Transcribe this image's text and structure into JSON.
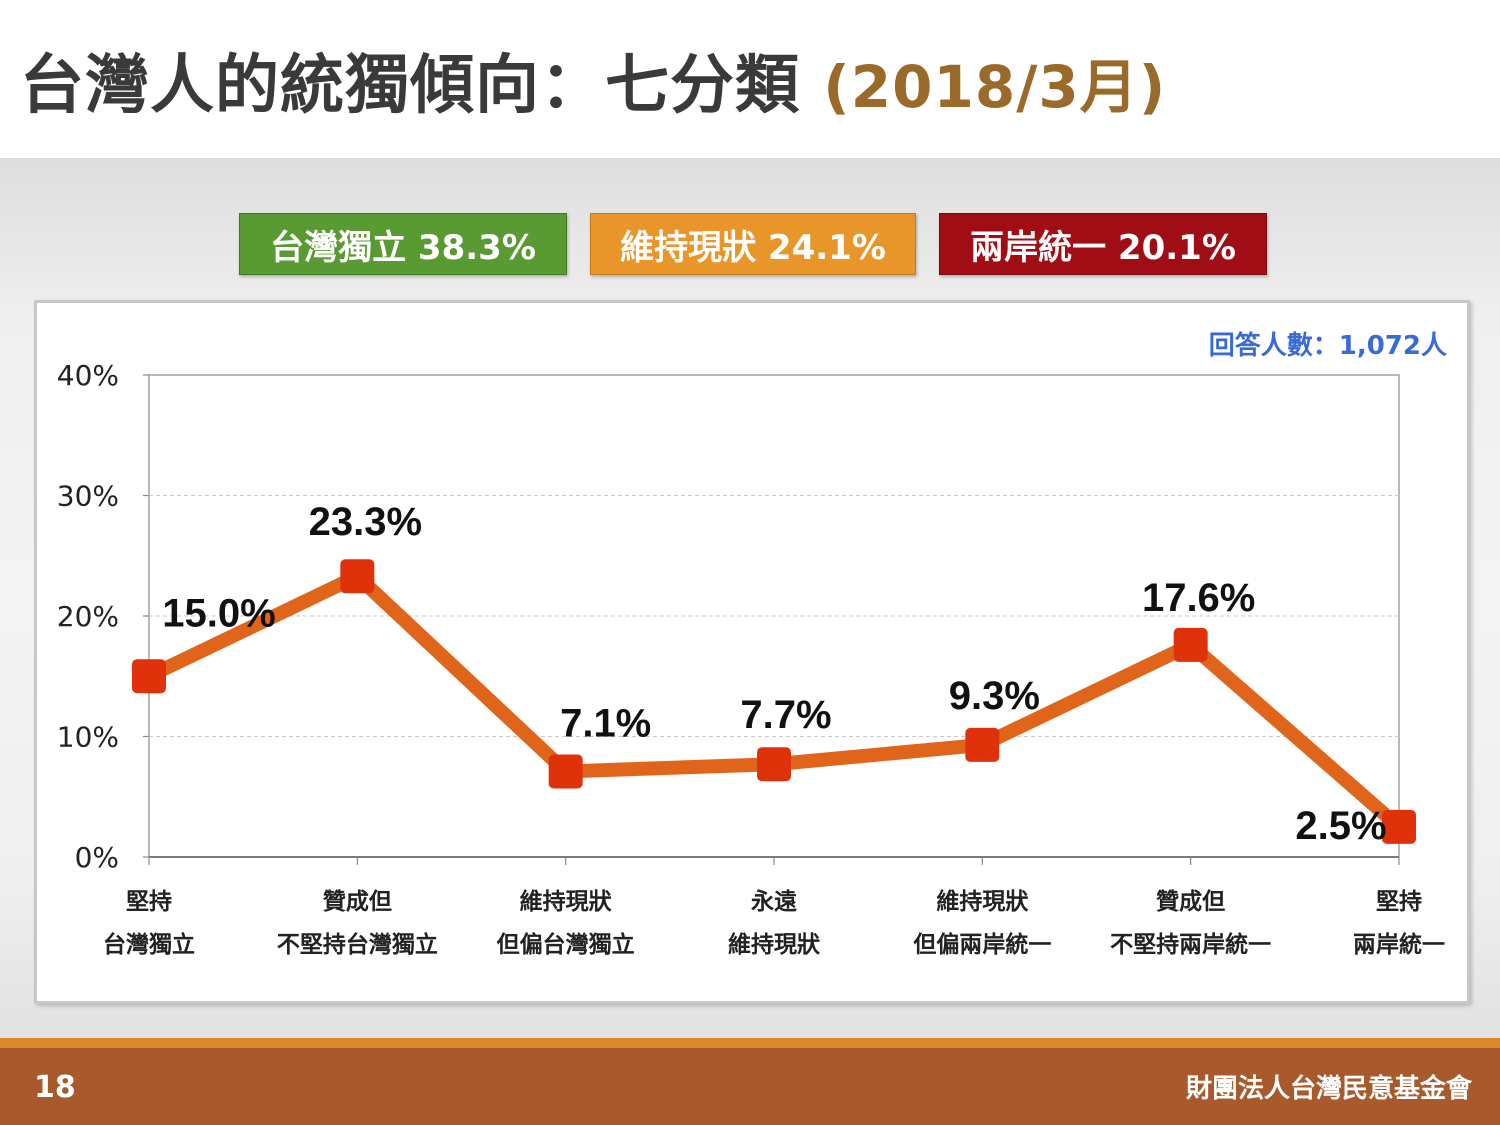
{
  "title": {
    "main": "台灣人的統獨傾向：七分類",
    "date": "(2018/3月)"
  },
  "badges": [
    {
      "label": "台灣獨立 38.3%",
      "color": "#5a9a32"
    },
    {
      "label": "維持現狀 24.1%",
      "color": "#e8962a"
    },
    {
      "label": "兩岸統一 20.1%",
      "color": "#a00d14"
    }
  ],
  "respondents": "回答人數：1,072人",
  "footer": {
    "page": "18",
    "org": "財團法人台灣民意基金會"
  },
  "chart_data": {
    "type": "line",
    "categories": [
      [
        "堅持",
        "台灣獨立"
      ],
      [
        "贊成但",
        "不堅持台灣獨立"
      ],
      [
        "維持現狀",
        "但偏台灣獨立"
      ],
      [
        "永遠",
        "維持現狀"
      ],
      [
        "維持現狀",
        "但偏兩岸統一"
      ],
      [
        "贊成但",
        "不堅持兩岸統一"
      ],
      [
        "堅持",
        "兩岸統一"
      ]
    ],
    "series": [
      {
        "values": [
          15.0,
          23.3,
          7.1,
          7.7,
          9.3,
          17.6,
          2.5
        ],
        "labels": [
          "15.0%",
          "23.3%",
          "7.1%",
          "7.7%",
          "9.3%",
          "17.6%",
          "2.5%"
        ],
        "color": "#e0651a"
      }
    ],
    "ylim": [
      0,
      40
    ],
    "yticks": [
      0,
      10,
      20,
      30,
      40
    ],
    "ytick_labels": [
      "0%",
      "10%",
      "20%",
      "30%",
      "40%"
    ],
    "grid": true,
    "marker_color": "#e0320a"
  }
}
